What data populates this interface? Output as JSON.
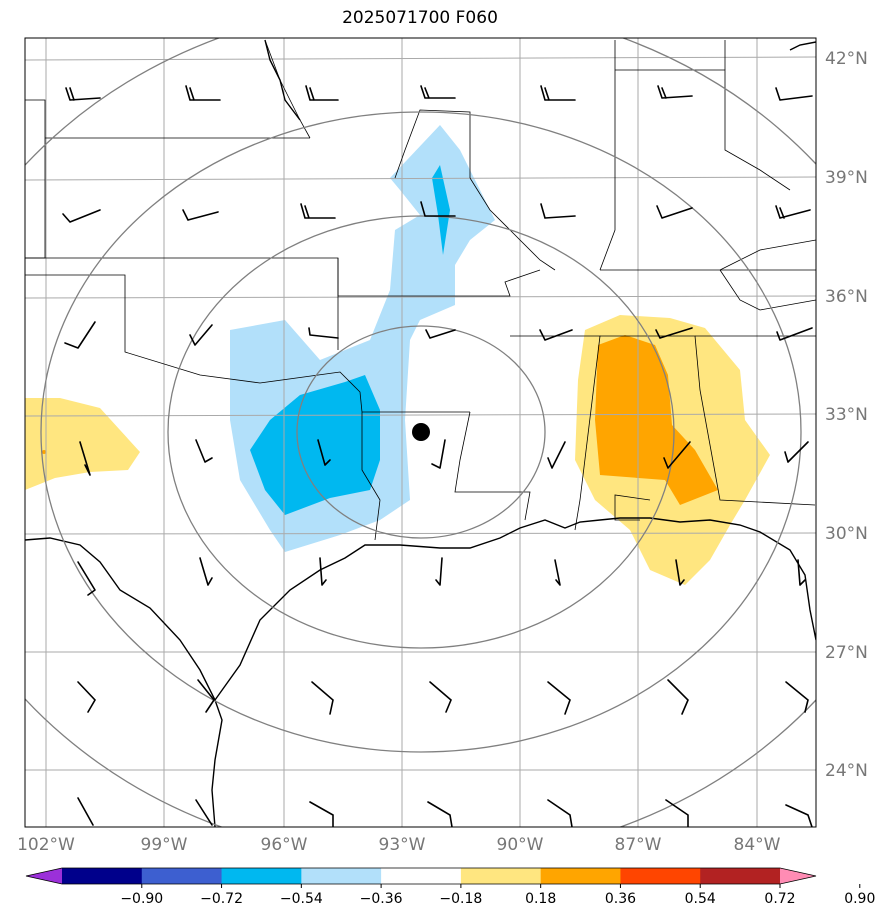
{
  "title": "2025071700 F060",
  "lat_labels": [
    "42°N",
    "39°N",
    "36°N",
    "33°N",
    "30°N",
    "27°N",
    "24°N"
  ],
  "lon_labels": [
    "102°W",
    "99°W",
    "96°W",
    "93°W",
    "90°W",
    "87°W",
    "84°W"
  ],
  "colorbar": {
    "ticks": [
      "−0.90",
      "−0.72",
      "−0.54",
      "−0.36",
      "−0.18",
      "0.18",
      "0.36",
      "0.54",
      "0.72",
      "0.90"
    ],
    "colors": [
      "#9b30d9",
      "#00008b",
      "#3d5fd0",
      "#00b8f0",
      "#b2e0fa",
      "#ffffff",
      "#ffe680",
      "#ffa500",
      "#ff4500",
      "#b22222",
      "#ff8cb4"
    ]
  },
  "colors": {
    "light_blue": "#b2e0fa",
    "mid_blue": "#00b8f0",
    "light_yellow": "#ffe680",
    "orange": "#ffa500",
    "range_ring": "#808080",
    "grid": "#aaaaaa"
  },
  "center_marker": "black-dot",
  "icons": [
    "wind-barb-icon"
  ]
}
